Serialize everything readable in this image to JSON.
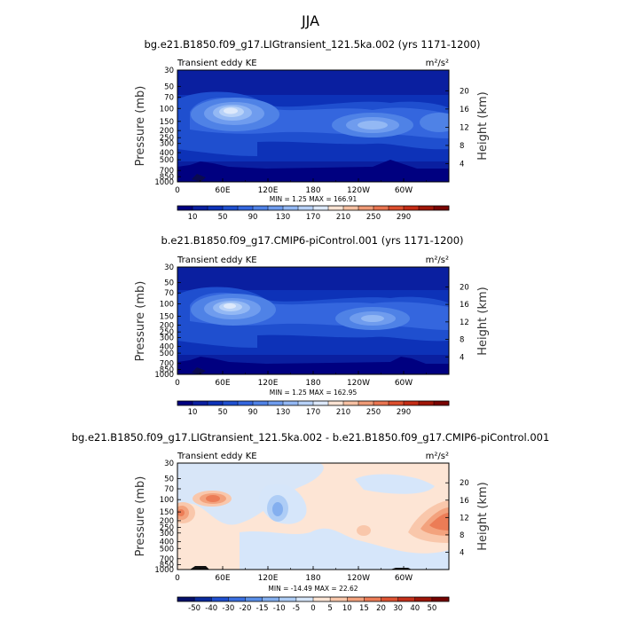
{
  "title": "JJA",
  "chart_data": [
    {
      "type": "heatmap",
      "title": "bg.e21.B1850.f09_g17.LIGtransient_121.5ka.002 (yrs 1171-1200)",
      "field_label": "Transient eddy KE",
      "units": "m²/s²",
      "ylabel": "Pressure (mb)",
      "y2label": "Height (km)",
      "xticks": [
        "0",
        "60E",
        "120E",
        "180",
        "120W",
        "60W"
      ],
      "yticks": [
        "30",
        "50",
        "70",
        "100",
        "150",
        "200",
        "250",
        "300",
        "400",
        "500",
        "700",
        "850",
        "1000"
      ],
      "y2ticks": [
        "20",
        "16",
        "12",
        "8",
        "4"
      ],
      "stats": "MIN =     1.25   MAX =  166.91",
      "min": 1.25,
      "max": 166.91,
      "colorbar_labels": [
        "10",
        "50",
        "90",
        "130",
        "170",
        "210",
        "250",
        "290"
      ],
      "colors": [
        "#000080",
        "#0a1fa0",
        "#0d32b8",
        "#1f4fcf",
        "#3466de",
        "#4f82e6",
        "#6f9cee",
        "#93b8f4",
        "#b8d2f8",
        "#dde9fb",
        "#fbe3d3",
        "#f6c0a2",
        "#ef9a76",
        "#e97450",
        "#dc4e2d",
        "#c42c15",
        "#a01608",
        "#7a0402"
      ]
    },
    {
      "type": "heatmap",
      "title": "b.e21.B1850.f09_g17.CMIP6-piControl.001 (yrs 1171-1200)",
      "field_label": "Transient eddy KE",
      "units": "m²/s²",
      "ylabel": "Pressure (mb)",
      "y2label": "Height (km)",
      "xticks": [
        "0",
        "60E",
        "120E",
        "180",
        "120W",
        "60W"
      ],
      "yticks": [
        "30",
        "50",
        "70",
        "100",
        "150",
        "200",
        "250",
        "300",
        "400",
        "500",
        "700",
        "850",
        "1000"
      ],
      "y2ticks": [
        "20",
        "16",
        "12",
        "8",
        "4"
      ],
      "stats": "MIN =     1.25   MAX =  162.95",
      "min": 1.25,
      "max": 162.95,
      "colorbar_labels": [
        "10",
        "50",
        "90",
        "130",
        "170",
        "210",
        "250",
        "290"
      ],
      "colors": [
        "#000080",
        "#0a1fa0",
        "#0d32b8",
        "#1f4fcf",
        "#3466de",
        "#4f82e6",
        "#6f9cee",
        "#93b8f4",
        "#b8d2f8",
        "#dde9fb",
        "#fbe3d3",
        "#f6c0a2",
        "#ef9a76",
        "#e97450",
        "#dc4e2d",
        "#c42c15",
        "#a01608",
        "#7a0402"
      ]
    },
    {
      "type": "heatmap",
      "title": "bg.e21.B1850.f09_g17.LIGtransient_121.5ka.002 - b.e21.B1850.f09_g17.CMIP6-piControl.001",
      "field_label": "Transient eddy KE",
      "units": "m²/s²",
      "ylabel": "Pressure (mb)",
      "y2label": "Height (km)",
      "xticks": [
        "0",
        "60E",
        "120E",
        "180",
        "120W",
        "60W"
      ],
      "yticks": [
        "30",
        "50",
        "70",
        "100",
        "150",
        "200",
        "250",
        "300",
        "400",
        "500",
        "700",
        "850",
        "1000"
      ],
      "y2ticks": [
        "20",
        "16",
        "12",
        "8",
        "4"
      ],
      "stats": "MIN =  -14.49   MAX =   22.62",
      "min": -14.49,
      "max": 22.62,
      "colorbar_labels": [
        "-50",
        "-40",
        "-30",
        "-20",
        "-15",
        "-10",
        "-5",
        "0",
        "5",
        "10",
        "15",
        "20",
        "30",
        "40",
        "50"
      ],
      "colors": [
        "#05106a",
        "#0a2a9c",
        "#1f4fcf",
        "#3a6fe0",
        "#5a8fe8",
        "#84afef",
        "#aecdf6",
        "#d6e6fa",
        "#fde5d5",
        "#f9c7ab",
        "#f3a27d",
        "#ec7c56",
        "#de5332",
        "#c4301a",
        "#9e1609",
        "#740300"
      ]
    }
  ]
}
